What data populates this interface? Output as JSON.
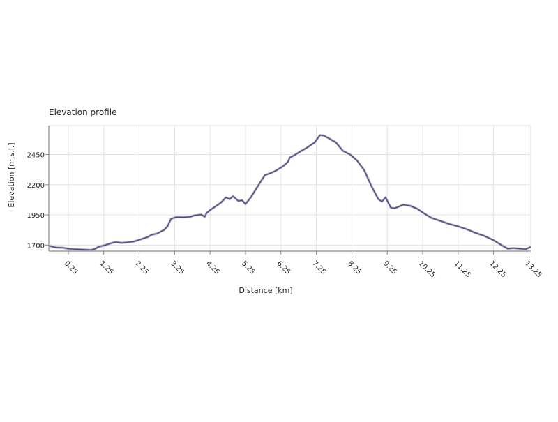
{
  "chart_data": {
    "type": "line",
    "title": "Elevation profile",
    "xlabel": "Distance [km]",
    "ylabel": "Elevation [m.s.l.]",
    "xlim": [
      -0.3,
      13.3
    ],
    "ylim": [
      1650,
      2690
    ],
    "x_ticks": [
      0.25,
      1.25,
      2.25,
      3.25,
      4.25,
      5.25,
      6.25,
      7.25,
      8.25,
      9.25,
      10.25,
      11.25,
      12.25,
      13.25
    ],
    "x_tick_labels": [
      "0.25",
      "1.25",
      "2.25",
      "3.25",
      "4.25",
      "5.25",
      "6.25",
      "7.25",
      "8.25",
      "9.25",
      "10.25",
      "11.25",
      "12.25",
      "13.25"
    ],
    "y_ticks": [
      1700,
      1950,
      2200,
      2450
    ],
    "y_tick_labels": [
      "1700",
      "1950",
      "2200",
      "2450"
    ],
    "grid": true,
    "legend": "none",
    "series": [
      {
        "line_color": "#4a4a66",
        "shadow_color": "#a9a6cf",
        "x": [
          -0.3,
          -0.1,
          0.1,
          0.3,
          0.5,
          0.7,
          0.9,
          1.0,
          1.1,
          1.3,
          1.5,
          1.6,
          1.75,
          1.9,
          2.1,
          2.3,
          2.5,
          2.6,
          2.75,
          2.85,
          2.95,
          3.05,
          3.15,
          3.3,
          3.5,
          3.7,
          3.8,
          4.0,
          4.1,
          4.15,
          4.25,
          4.4,
          4.55,
          4.7,
          4.8,
          4.9,
          5.05,
          5.15,
          5.25,
          5.4,
          5.6,
          5.8,
          5.95,
          6.1,
          6.3,
          6.45,
          6.5,
          6.6,
          6.8,
          7.0,
          7.2,
          7.35,
          7.45,
          7.6,
          7.8,
          8.0,
          8.2,
          8.4,
          8.6,
          8.8,
          9.0,
          9.1,
          9.2,
          9.35,
          9.45,
          9.55,
          9.7,
          9.9,
          10.1,
          10.3,
          10.5,
          10.75,
          11.0,
          11.25,
          11.5,
          11.75,
          12.0,
          12.25,
          12.5,
          12.65,
          12.8,
          13.0,
          13.15,
          13.3
        ],
        "y": [
          1695,
          1680,
          1678,
          1668,
          1665,
          1662,
          1660,
          1668,
          1685,
          1700,
          1720,
          1725,
          1718,
          1722,
          1730,
          1748,
          1768,
          1785,
          1795,
          1810,
          1825,
          1855,
          1918,
          1932,
          1930,
          1935,
          1945,
          1952,
          1935,
          1965,
          1990,
          2020,
          2050,
          2095,
          2080,
          2105,
          2065,
          2072,
          2040,
          2095,
          2190,
          2280,
          2295,
          2315,
          2350,
          2390,
          2425,
          2440,
          2475,
          2510,
          2550,
          2610,
          2608,
          2585,
          2550,
          2480,
          2450,
          2400,
          2320,
          2190,
          2080,
          2060,
          2095,
          2010,
          2005,
          2015,
          2035,
          2025,
          2000,
          1960,
          1925,
          1900,
          1875,
          1855,
          1830,
          1800,
          1775,
          1740,
          1695,
          1670,
          1675,
          1670,
          1665,
          1685
        ]
      }
    ]
  }
}
